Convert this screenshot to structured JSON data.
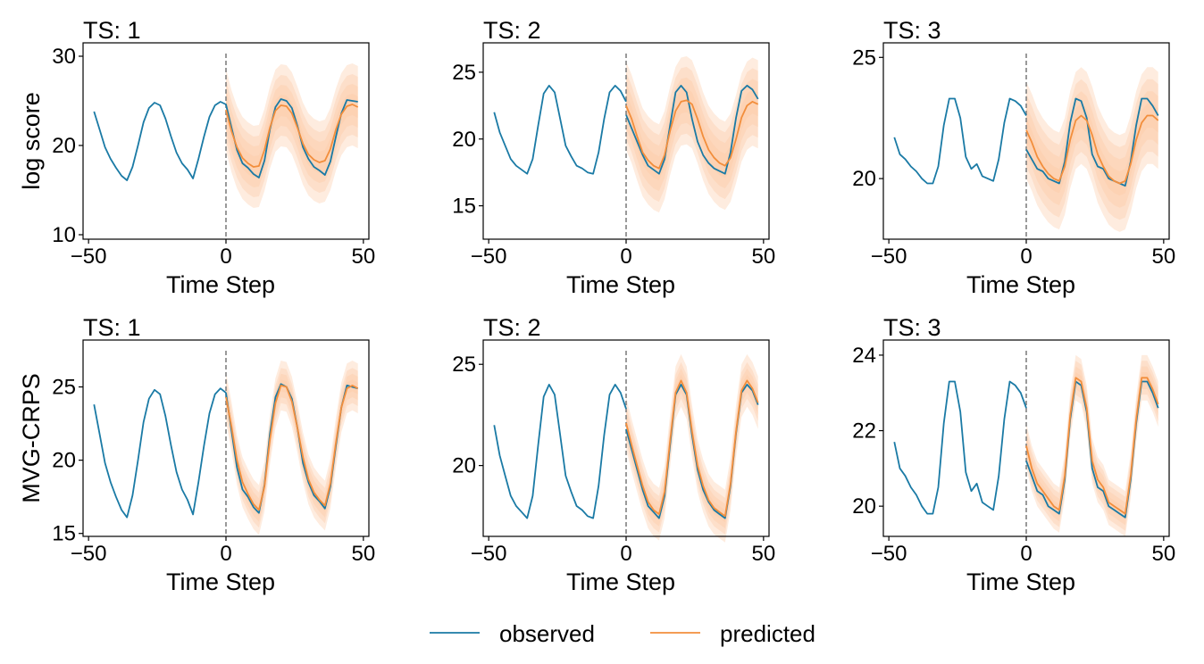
{
  "colors": {
    "observed": "#1a7aa5",
    "predicted": "#f28e3c",
    "band": "#fbc8a3",
    "vline": "#808080"
  },
  "legend": {
    "items": [
      {
        "label": "observed",
        "color": "#1a7aa5"
      },
      {
        "label": "predicted",
        "color": "#f28e3c"
      }
    ]
  },
  "chart_data": [
    {
      "type": "line",
      "row_label": "log score",
      "title": "TS: 1",
      "xlabel": "Time Step",
      "xlim": [
        -52,
        52
      ],
      "ylim": [
        9.5,
        31.5
      ],
      "xticks": [
        -50,
        0,
        50
      ],
      "yticks": [
        10,
        20,
        30
      ],
      "obs_x": [
        -48,
        -46,
        -44,
        -42,
        -40,
        -38,
        -36,
        -34,
        -32,
        -30,
        -28,
        -26,
        -24,
        -22,
        -20,
        -18,
        -16,
        -14,
        -12,
        -10,
        -8,
        -6,
        -4,
        -2,
        0
      ],
      "obs_y": [
        23.8,
        21.8,
        19.8,
        18.5,
        17.5,
        16.6,
        16.1,
        17.6,
        20.0,
        22.6,
        24.2,
        24.8,
        24.5,
        23.0,
        21.0,
        19.2,
        18.0,
        17.3,
        16.3,
        18.5,
        21.0,
        23.2,
        24.5,
        24.9,
        24.6
      ],
      "fut_x": [
        0,
        2,
        4,
        6,
        8,
        10,
        12,
        14,
        16,
        18,
        20,
        22,
        24,
        26,
        28,
        30,
        32,
        34,
        36,
        38,
        40,
        42,
        44,
        46,
        48
      ],
      "fut_obs": [
        24.6,
        22.0,
        19.5,
        18.0,
        17.5,
        16.8,
        16.4,
        18.3,
        21.8,
        24.3,
        25.2,
        25.0,
        24.2,
        22.2,
        19.8,
        18.5,
        17.6,
        17.2,
        16.7,
        18.2,
        21.0,
        23.6,
        25.1,
        25.0,
        24.9
      ],
      "pred": [
        24.0,
        21.6,
        19.8,
        18.6,
        18.0,
        17.6,
        17.7,
        19.5,
        22.0,
        23.9,
        24.5,
        24.4,
        23.6,
        22.0,
        20.2,
        19.0,
        18.4,
        18.1,
        18.3,
        19.6,
        21.8,
        23.5,
        24.4,
        24.6,
        24.3
      ],
      "bands": [
        1.2,
        2.3,
        3.4,
        4.6
      ]
    },
    {
      "type": "line",
      "title": "TS: 2",
      "xlabel": "Time Step",
      "xlim": [
        -52,
        52
      ],
      "ylim": [
        12.5,
        27.2
      ],
      "xticks": [
        -50,
        0,
        50
      ],
      "yticks": [
        15,
        20,
        25
      ],
      "obs_x": [
        -48,
        -46,
        -44,
        -42,
        -40,
        -38,
        -36,
        -34,
        -32,
        -30,
        -28,
        -26,
        -24,
        -22,
        -20,
        -18,
        -16,
        -14,
        -12,
        -10,
        -8,
        -6,
        -4,
        -2,
        0
      ],
      "obs_y": [
        22.0,
        20.5,
        19.5,
        18.5,
        18.0,
        17.7,
        17.4,
        18.5,
        21.0,
        23.4,
        24.0,
        23.5,
        21.5,
        19.5,
        18.7,
        18.0,
        17.8,
        17.5,
        17.4,
        19.0,
        21.5,
        23.5,
        24.0,
        23.6,
        22.8
      ],
      "fut_x": [
        0,
        2,
        4,
        6,
        8,
        10,
        12,
        14,
        16,
        18,
        20,
        22,
        24,
        26,
        28,
        30,
        32,
        34,
        36,
        38,
        40,
        42,
        44,
        46,
        48
      ],
      "fut_obs": [
        21.8,
        20.8,
        19.8,
        18.8,
        18.0,
        17.7,
        17.4,
        18.5,
        21.0,
        23.5,
        24.0,
        23.5,
        21.5,
        19.8,
        18.8,
        18.2,
        17.8,
        17.6,
        17.4,
        19.0,
        21.6,
        23.6,
        24.0,
        23.7,
        23.0
      ],
      "pred": [
        22.5,
        21.5,
        20.2,
        19.0,
        18.4,
        18.0,
        17.8,
        18.8,
        20.6,
        22.1,
        22.8,
        22.9,
        22.6,
        21.5,
        20.2,
        19.2,
        18.6,
        18.2,
        18.0,
        18.6,
        20.0,
        21.6,
        22.5,
        22.8,
        22.6
      ],
      "bands": [
        0.9,
        1.7,
        2.5,
        3.3
      ]
    },
    {
      "type": "line",
      "title": "TS: 3",
      "xlabel": "Time Step",
      "xlim": [
        -52,
        52
      ],
      "ylim": [
        17.5,
        25.6
      ],
      "xticks": [
        -50,
        0,
        50
      ],
      "yticks": [
        20,
        25
      ],
      "obs_x": [
        -48,
        -46,
        -44,
        -42,
        -40,
        -38,
        -36,
        -34,
        -32,
        -30,
        -28,
        -26,
        -24,
        -22,
        -20,
        -18,
        -16,
        -14,
        -12,
        -10,
        -8,
        -6,
        -4,
        -2,
        0
      ],
      "obs_y": [
        21.7,
        21.0,
        20.8,
        20.5,
        20.3,
        20.0,
        19.8,
        19.8,
        20.5,
        22.2,
        23.3,
        23.3,
        22.5,
        20.9,
        20.4,
        20.6,
        20.1,
        20.0,
        19.9,
        20.8,
        22.3,
        23.3,
        23.2,
        23.0,
        22.6
      ],
      "fut_x": [
        0,
        2,
        4,
        6,
        8,
        10,
        12,
        14,
        16,
        18,
        20,
        22,
        24,
        26,
        28,
        30,
        32,
        34,
        36,
        38,
        40,
        42,
        44,
        46,
        48
      ],
      "fut_obs": [
        21.2,
        20.8,
        20.4,
        20.3,
        20.0,
        19.9,
        19.8,
        20.7,
        22.3,
        23.3,
        23.2,
        22.5,
        21.0,
        20.5,
        20.4,
        20.0,
        19.9,
        19.8,
        19.7,
        20.7,
        22.2,
        23.3,
        23.3,
        23.0,
        22.6
      ],
      "pred": [
        22.0,
        21.5,
        20.9,
        20.5,
        20.2,
        20.0,
        19.9,
        20.5,
        21.6,
        22.4,
        22.6,
        22.4,
        21.8,
        21.0,
        20.5,
        20.1,
        19.9,
        19.8,
        19.9,
        20.6,
        21.6,
        22.3,
        22.6,
        22.6,
        22.4
      ],
      "bands": [
        0.5,
        1.0,
        1.5,
        2.0
      ]
    },
    {
      "type": "line",
      "row_label": "MVG-CRPS",
      "title": "TS: 1",
      "xlabel": "Time Step",
      "xlim": [
        -52,
        52
      ],
      "ylim": [
        14.8,
        28.2
      ],
      "xticks": [
        -50,
        0,
        50
      ],
      "yticks": [
        15,
        20,
        25
      ],
      "obs_x": [
        -48,
        -46,
        -44,
        -42,
        -40,
        -38,
        -36,
        -34,
        -32,
        -30,
        -28,
        -26,
        -24,
        -22,
        -20,
        -18,
        -16,
        -14,
        -12,
        -10,
        -8,
        -6,
        -4,
        -2,
        0
      ],
      "obs_y": [
        23.8,
        21.8,
        19.8,
        18.5,
        17.5,
        16.6,
        16.1,
        17.6,
        20.0,
        22.6,
        24.2,
        24.8,
        24.5,
        23.0,
        21.0,
        19.2,
        18.0,
        17.3,
        16.3,
        18.5,
        21.0,
        23.2,
        24.5,
        24.9,
        24.6
      ],
      "fut_x": [
        0,
        2,
        4,
        6,
        8,
        10,
        12,
        14,
        16,
        18,
        20,
        22,
        24,
        26,
        28,
        30,
        32,
        34,
        36,
        38,
        40,
        42,
        44,
        46,
        48
      ],
      "fut_obs": [
        24.6,
        22.0,
        19.5,
        18.0,
        17.5,
        16.8,
        16.4,
        18.3,
        21.8,
        24.3,
        25.2,
        25.0,
        24.2,
        22.2,
        19.8,
        18.5,
        17.6,
        17.2,
        16.7,
        18.2,
        21.0,
        23.6,
        25.1,
        25.0,
        24.9
      ],
      "pred": [
        24.3,
        22.3,
        20.0,
        18.5,
        17.7,
        17.0,
        16.6,
        18.2,
        21.4,
        23.9,
        25.1,
        25.0,
        24.0,
        22.2,
        20.2,
        18.7,
        17.8,
        17.3,
        16.9,
        18.4,
        21.2,
        23.6,
        24.9,
        25.1,
        24.9
      ],
      "bands": [
        0.4,
        0.8,
        1.2,
        1.7
      ]
    },
    {
      "type": "line",
      "title": "TS: 2",
      "xlabel": "Time Step",
      "xlim": [
        -52,
        52
      ],
      "ylim": [
        16.5,
        26.2
      ],
      "xticks": [
        -50,
        0,
        50
      ],
      "yticks": [
        20,
        25
      ],
      "obs_x": [
        -48,
        -46,
        -44,
        -42,
        -40,
        -38,
        -36,
        -34,
        -32,
        -30,
        -28,
        -26,
        -24,
        -22,
        -20,
        -18,
        -16,
        -14,
        -12,
        -10,
        -8,
        -6,
        -4,
        -2,
        0
      ],
      "obs_y": [
        22.0,
        20.5,
        19.5,
        18.5,
        18.0,
        17.7,
        17.4,
        18.5,
        21.0,
        23.4,
        24.0,
        23.5,
        21.5,
        19.5,
        18.7,
        18.0,
        17.8,
        17.5,
        17.4,
        19.0,
        21.5,
        23.5,
        24.0,
        23.6,
        22.8
      ],
      "fut_x": [
        0,
        2,
        4,
        6,
        8,
        10,
        12,
        14,
        16,
        18,
        20,
        22,
        24,
        26,
        28,
        30,
        32,
        34,
        36,
        38,
        40,
        42,
        44,
        46,
        48
      ],
      "fut_obs": [
        21.8,
        20.8,
        19.8,
        18.8,
        18.0,
        17.7,
        17.4,
        18.5,
        21.0,
        23.5,
        24.0,
        23.5,
        21.5,
        19.8,
        18.8,
        18.2,
        17.8,
        17.6,
        17.4,
        19.0,
        21.6,
        23.6,
        24.0,
        23.7,
        23.0
      ],
      "pred": [
        22.1,
        21.0,
        20.0,
        19.0,
        18.2,
        17.8,
        17.6,
        18.7,
        21.2,
        23.6,
        24.2,
        23.6,
        21.7,
        20.0,
        19.0,
        18.3,
        17.9,
        17.7,
        17.5,
        19.1,
        21.7,
        23.7,
        24.2,
        23.8,
        23.1
      ],
      "bands": [
        0.3,
        0.6,
        0.9,
        1.3
      ]
    },
    {
      "type": "line",
      "title": "TS: 3",
      "xlabel": "Time Step",
      "xlim": [
        -52,
        52
      ],
      "ylim": [
        19.2,
        24.4
      ],
      "xticks": [
        -50,
        0,
        50
      ],
      "yticks": [
        20,
        22,
        24
      ],
      "obs_x": [
        -48,
        -46,
        -44,
        -42,
        -40,
        -38,
        -36,
        -34,
        -32,
        -30,
        -28,
        -26,
        -24,
        -22,
        -20,
        -18,
        -16,
        -14,
        -12,
        -10,
        -8,
        -6,
        -4,
        -2,
        0
      ],
      "obs_y": [
        21.7,
        21.0,
        20.8,
        20.5,
        20.3,
        20.0,
        19.8,
        19.8,
        20.5,
        22.2,
        23.3,
        23.3,
        22.5,
        20.9,
        20.4,
        20.6,
        20.1,
        20.0,
        19.9,
        20.8,
        22.3,
        23.3,
        23.2,
        23.0,
        22.6
      ],
      "fut_x": [
        0,
        2,
        4,
        6,
        8,
        10,
        12,
        14,
        16,
        18,
        20,
        22,
        24,
        26,
        28,
        30,
        32,
        34,
        36,
        38,
        40,
        42,
        44,
        46,
        48
      ],
      "fut_obs": [
        21.2,
        20.8,
        20.4,
        20.3,
        20.0,
        19.9,
        19.8,
        20.7,
        22.3,
        23.3,
        23.2,
        22.5,
        21.0,
        20.5,
        20.4,
        20.0,
        19.9,
        19.8,
        19.7,
        20.7,
        22.2,
        23.3,
        23.3,
        23.0,
        22.6
      ],
      "pred": [
        21.6,
        21.0,
        20.6,
        20.4,
        20.2,
        20.0,
        19.9,
        20.8,
        22.4,
        23.4,
        23.3,
        22.6,
        21.2,
        20.7,
        20.5,
        20.1,
        20.0,
        19.9,
        19.8,
        20.8,
        22.3,
        23.4,
        23.4,
        23.1,
        22.7
      ],
      "bands": [
        0.15,
        0.3,
        0.45,
        0.6
      ]
    }
  ]
}
